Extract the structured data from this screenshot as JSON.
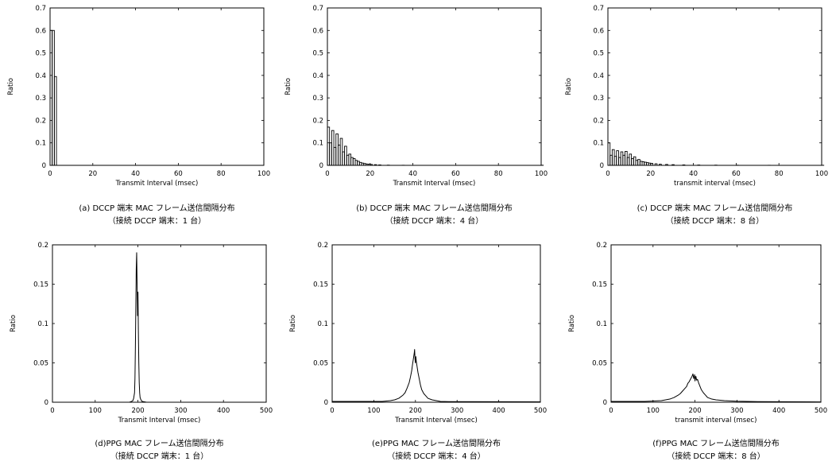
{
  "charts": [
    {
      "id": "a",
      "caption": [
        "(a) DCCP 端末 MAC フレーム送信間隔分布",
        "（接続 DCCP 端末：1 台）"
      ],
      "chart_data": {
        "type": "bar",
        "style": "histogram-step",
        "xlabel": "Transmit Interval (msec)",
        "ylabel": "Ratio",
        "xlim": [
          0,
          100
        ],
        "ylim": [
          0,
          0.7
        ],
        "xticks": [
          "0",
          "20",
          "40",
          "60",
          "80",
          "100"
        ],
        "yticks": [
          "0",
          "0.1",
          "0.2",
          "0.3",
          "0.4",
          "0.5",
          "0.6",
          "0.7"
        ],
        "bin_width": 1,
        "bins": [
          [
            0,
            0.6
          ],
          [
            1,
            0.6
          ],
          [
            2,
            0.395
          ]
        ]
      }
    },
    {
      "id": "b",
      "caption": [
        "(b) DCCP 端末 MAC フレーム送信間隔分布",
        "（接続 DCCP 端末：4 台）"
      ],
      "chart_data": {
        "type": "bar",
        "style": "histogram-step",
        "xlabel": "Transmit Interval (msec)",
        "ylabel": "Ratio",
        "xlim": [
          0,
          100
        ],
        "ylim": [
          0,
          0.7
        ],
        "xticks": [
          "0",
          "20",
          "40",
          "60",
          "80",
          "100"
        ],
        "yticks": [
          "0",
          "0.1",
          "0.2",
          "0.3",
          "0.4",
          "0.5",
          "0.6",
          "0.7"
        ],
        "bin_width": 1,
        "bins": [
          [
            0,
            0.17
          ],
          [
            1,
            0.1
          ],
          [
            2,
            0.155
          ],
          [
            3,
            0.08
          ],
          [
            4,
            0.14
          ],
          [
            5,
            0.09
          ],
          [
            6,
            0.12
          ],
          [
            7,
            0.06
          ],
          [
            8,
            0.085
          ],
          [
            9,
            0.045
          ],
          [
            10,
            0.05
          ],
          [
            11,
            0.035
          ],
          [
            12,
            0.03
          ],
          [
            13,
            0.022
          ],
          [
            14,
            0.018
          ],
          [
            15,
            0.013
          ],
          [
            16,
            0.01
          ],
          [
            17,
            0.008
          ],
          [
            18,
            0.006
          ],
          [
            19,
            0.005
          ],
          [
            20,
            0.004
          ],
          [
            22,
            0.003
          ],
          [
            24,
            0.002
          ],
          [
            28,
            0.001
          ],
          [
            35,
            0.0005
          ],
          [
            100,
            0.0005
          ]
        ]
      }
    },
    {
      "id": "c",
      "caption": [
        "(c) DCCP 端末 MAC フレーム送信間隔分布",
        "（接続 DCCP 端末：8 台）"
      ],
      "chart_data": {
        "type": "bar",
        "style": "histogram-step",
        "xlabel": "transmit interval (msec)",
        "ylabel": "Ratio",
        "xlim": [
          0,
          100
        ],
        "ylim": [
          0,
          0.7
        ],
        "xticks": [
          "0",
          "20",
          "40",
          "60",
          "80",
          "100"
        ],
        "yticks": [
          "0",
          "0.1",
          "0.2",
          "0.3",
          "0.4",
          "0.5",
          "0.6",
          "0.7"
        ],
        "bin_width": 1,
        "bins": [
          [
            0,
            0.1
          ],
          [
            1,
            0.045
          ],
          [
            2,
            0.07
          ],
          [
            3,
            0.04
          ],
          [
            4,
            0.065
          ],
          [
            5,
            0.035
          ],
          [
            6,
            0.06
          ],
          [
            7,
            0.045
          ],
          [
            8,
            0.062
          ],
          [
            9,
            0.035
          ],
          [
            10,
            0.05
          ],
          [
            11,
            0.03
          ],
          [
            12,
            0.038
          ],
          [
            13,
            0.022
          ],
          [
            14,
            0.026
          ],
          [
            15,
            0.018
          ],
          [
            16,
            0.016
          ],
          [
            17,
            0.014
          ],
          [
            18,
            0.012
          ],
          [
            19,
            0.01
          ],
          [
            20,
            0.009
          ],
          [
            22,
            0.007
          ],
          [
            24,
            0.005
          ],
          [
            27,
            0.004
          ],
          [
            30,
            0.003
          ],
          [
            35,
            0.002
          ],
          [
            42,
            0.0015
          ],
          [
            50,
            0.001
          ],
          [
            60,
            0.0007
          ],
          [
            75,
            0.0004
          ],
          [
            100,
            0.0004
          ]
        ]
      }
    },
    {
      "id": "d",
      "caption": [
        "(d)PPG MAC フレーム送信間隔分布",
        "（接続 DCCP 端末：1 台）"
      ],
      "chart_data": {
        "type": "line",
        "xlabel": "Transmit Interval (msec)",
        "ylabel": "Ratio",
        "xlim": [
          0,
          500
        ],
        "ylim": [
          0,
          0.2
        ],
        "xticks": [
          "0",
          "100",
          "200",
          "300",
          "400",
          "500"
        ],
        "yticks": [
          "0",
          "0.05",
          "0.1",
          "0.15",
          "0.2"
        ],
        "x": [
          0,
          180,
          185,
          188,
          190,
          192,
          193,
          194,
          195,
          196,
          197,
          198,
          199,
          200,
          201,
          202,
          203,
          204,
          205,
          207,
          210,
          215,
          220,
          500
        ],
        "y": [
          0,
          0,
          0.001,
          0.002,
          0.005,
          0.012,
          0.03,
          0.07,
          0.12,
          0.17,
          0.19,
          0.15,
          0.11,
          0.14,
          0.09,
          0.05,
          0.025,
          0.012,
          0.006,
          0.003,
          0.001,
          0.0005,
          0,
          0
        ]
      }
    },
    {
      "id": "e",
      "caption": [
        "(e)PPG MAC フレーム送信間隔分布",
        "（接続 DCCP 端末：4 台）"
      ],
      "chart_data": {
        "type": "line",
        "xlabel": "Transmit Interval (msec)",
        "ylabel": "Ratio",
        "xlim": [
          0,
          500
        ],
        "ylim": [
          0,
          0.2
        ],
        "xticks": [
          "0",
          "100",
          "200",
          "300",
          "400",
          "500"
        ],
        "yticks": [
          "0",
          "0.05",
          "0.1",
          "0.15",
          "0.2"
        ],
        "x": [
          0,
          120,
          140,
          150,
          160,
          170,
          175,
          180,
          185,
          188,
          191,
          193,
          195,
          197,
          198,
          199,
          200,
          201,
          202,
          204,
          206,
          209,
          212,
          215,
          220,
          225,
          230,
          240,
          250,
          260,
          280,
          500
        ],
        "y": [
          0.001,
          0.001,
          0.002,
          0.003,
          0.005,
          0.009,
          0.012,
          0.018,
          0.025,
          0.032,
          0.04,
          0.048,
          0.055,
          0.062,
          0.067,
          0.055,
          0.05,
          0.058,
          0.052,
          0.045,
          0.038,
          0.03,
          0.022,
          0.016,
          0.011,
          0.008,
          0.005,
          0.003,
          0.002,
          0.001,
          0.0008,
          0.0005
        ]
      }
    },
    {
      "id": "f",
      "caption": [
        "(f)PPG MAC フレーム送信間隔分布",
        "（接続 DCCP 端末：8 台）"
      ],
      "chart_data": {
        "type": "line",
        "xlabel": "transmit interval (msec)",
        "ylabel": "Ratio",
        "xlim": [
          0,
          500
        ],
        "ylim": [
          0,
          0.2
        ],
        "xticks": [
          "0",
          "100",
          "200",
          "300",
          "400",
          "500"
        ],
        "yticks": [
          "0",
          "0.05",
          "0.1",
          "0.15",
          "0.2"
        ],
        "x": [
          0,
          80,
          100,
          120,
          140,
          150,
          160,
          165,
          170,
          175,
          180,
          183,
          186,
          189,
          191,
          193,
          195,
          197,
          199,
          200,
          202,
          204,
          206,
          209,
          212,
          215,
          220,
          225,
          230,
          240,
          250,
          270,
          300,
          350,
          500
        ],
        "y": [
          0.001,
          0.001,
          0.0015,
          0.002,
          0.004,
          0.006,
          0.009,
          0.011,
          0.014,
          0.017,
          0.02,
          0.024,
          0.026,
          0.029,
          0.031,
          0.033,
          0.036,
          0.03,
          0.035,
          0.027,
          0.033,
          0.028,
          0.029,
          0.024,
          0.02,
          0.016,
          0.012,
          0.009,
          0.006,
          0.004,
          0.003,
          0.002,
          0.0012,
          0.0008,
          0.0004
        ]
      }
    }
  ]
}
